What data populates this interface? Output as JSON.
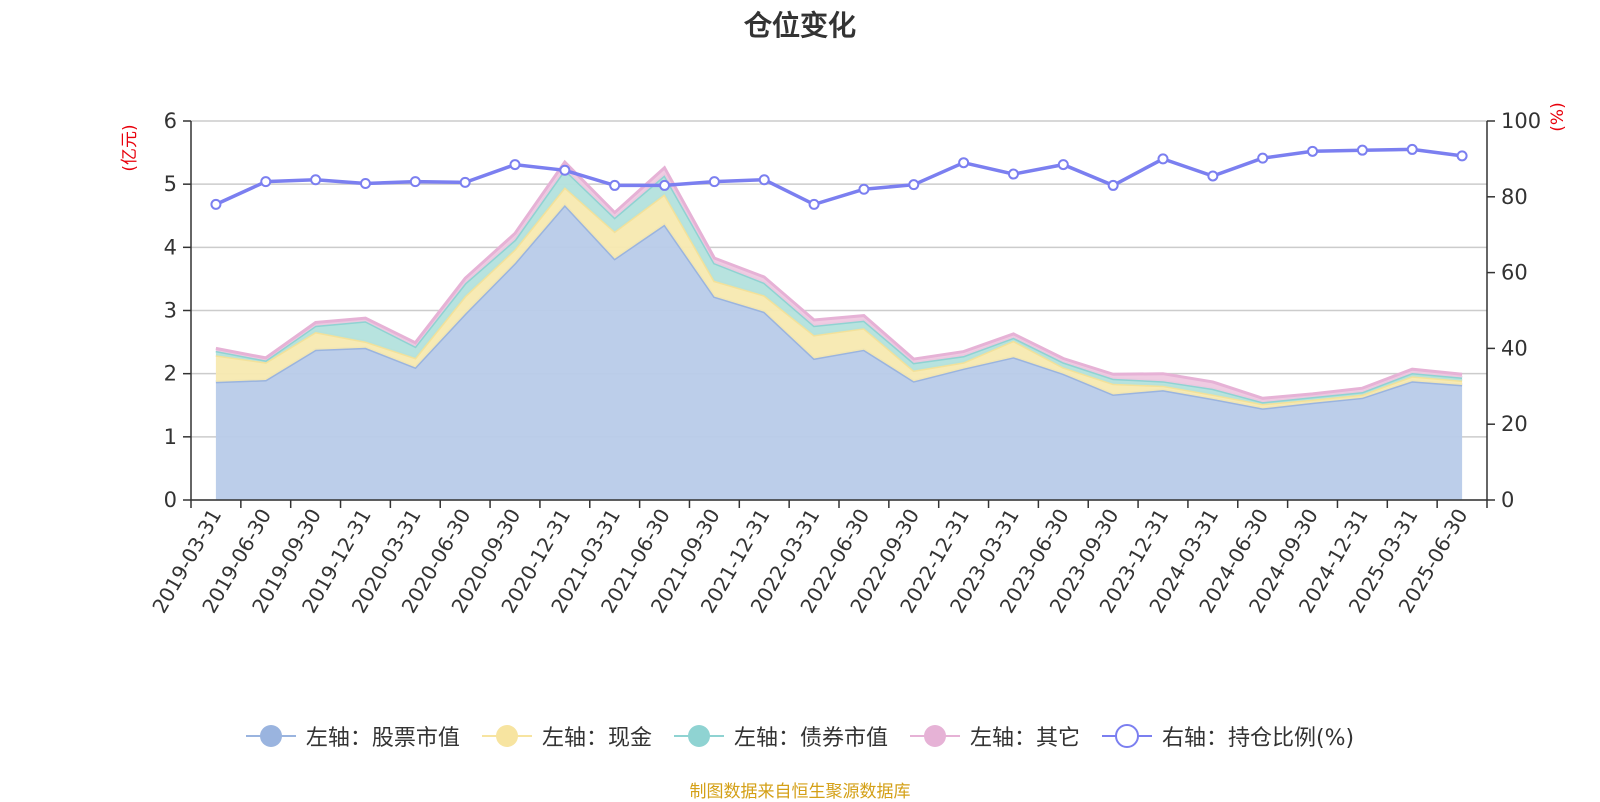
{
  "chart_data": {
    "type": "area",
    "title": "仓位变化",
    "left_axis_unit": "(亿元)",
    "right_axis_unit": "(%)",
    "ylim_left": [
      0,
      6
    ],
    "yticks_left": [
      "0",
      "1",
      "2",
      "3",
      "4",
      "5",
      "6"
    ],
    "ylim_right": [
      0,
      100
    ],
    "yticks_right": [
      "0",
      "20",
      "40",
      "60",
      "80",
      "100"
    ],
    "grid": true,
    "stacked": true,
    "legend_position": "bottom",
    "categories": [
      "2019-03-31",
      "2019-06-30",
      "2019-09-30",
      "2019-12-31",
      "2020-03-31",
      "2020-06-30",
      "2020-09-30",
      "2020-12-31",
      "2021-03-31",
      "2021-06-30",
      "2021-09-30",
      "2021-12-31",
      "2022-03-31",
      "2022-06-30",
      "2022-09-30",
      "2022-12-31",
      "2023-03-31",
      "2023-06-30",
      "2023-09-30",
      "2023-12-31",
      "2024-03-31",
      "2024-06-30",
      "2024-09-30",
      "2024-12-31",
      "2025-03-31",
      "2025-06-30"
    ],
    "series": [
      {
        "name": "左轴：股票市值",
        "axis": "left",
        "type": "area",
        "color": "#9ab4df",
        "fill": "#b8cbe9",
        "values": [
          1.87,
          1.9,
          2.38,
          2.41,
          2.1,
          2.95,
          3.75,
          4.67,
          3.82,
          4.36,
          3.22,
          2.98,
          2.24,
          2.38,
          1.88,
          2.08,
          2.26,
          2.0,
          1.67,
          1.74,
          1.6,
          1.45,
          1.54,
          1.62,
          1.88,
          1.82
        ]
      },
      {
        "name": "左轴：现金",
        "axis": "left",
        "type": "area",
        "color": "#f3e19a",
        "fill": "#f7e9b0",
        "values": [
          0.42,
          0.28,
          0.28,
          0.1,
          0.15,
          0.28,
          0.22,
          0.28,
          0.43,
          0.48,
          0.25,
          0.26,
          0.37,
          0.34,
          0.17,
          0.1,
          0.26,
          0.1,
          0.17,
          0.07,
          0.07,
          0.07,
          0.05,
          0.05,
          0.08,
          0.07
        ]
      },
      {
        "name": "左轴：债券市值",
        "axis": "left",
        "type": "area",
        "color": "#8fd3d2",
        "fill": "#b3e1dd",
        "values": [
          0.07,
          0.03,
          0.1,
          0.32,
          0.18,
          0.2,
          0.15,
          0.28,
          0.22,
          0.3,
          0.28,
          0.2,
          0.15,
          0.12,
          0.12,
          0.1,
          0.05,
          0.08,
          0.08,
          0.07,
          0.09,
          0.03,
          0.04,
          0.04,
          0.05,
          0.05
        ]
      },
      {
        "name": "左轴：其它",
        "axis": "left",
        "type": "area",
        "color": "#e6b2d6",
        "fill": "#efc8e0",
        "values": [
          0.04,
          0.04,
          0.05,
          0.05,
          0.06,
          0.08,
          0.1,
          0.12,
          0.08,
          0.12,
          0.08,
          0.09,
          0.09,
          0.08,
          0.06,
          0.07,
          0.06,
          0.06,
          0.07,
          0.12,
          0.11,
          0.06,
          0.05,
          0.06,
          0.06,
          0.05
        ]
      },
      {
        "name": "右轴：持仓比例(%)",
        "axis": "right",
        "type": "line",
        "color": "#7b7ff0",
        "values": [
          78.0,
          84.0,
          84.5,
          83.5,
          84.0,
          83.8,
          88.5,
          87.0,
          83.0,
          83.0,
          84.0,
          84.5,
          78.0,
          82.0,
          83.2,
          89.0,
          86.0,
          88.5,
          83.0,
          90.0,
          85.5,
          90.2,
          92.0,
          92.3,
          92.5,
          90.8
        ]
      }
    ]
  },
  "legend": [
    {
      "label": "左轴：股票市值",
      "icon": "filled-circle",
      "color": "#9ab4df"
    },
    {
      "label": "左轴：现金",
      "icon": "filled-circle",
      "color": "#f7e4a0"
    },
    {
      "label": "左轴：债券市值",
      "icon": "filled-circle",
      "color": "#8fd3d2"
    },
    {
      "label": "左轴：其它",
      "icon": "filled-circle",
      "color": "#e6b2d6"
    },
    {
      "label": "右轴：持仓比例(%)",
      "icon": "hollow-circle",
      "color": "#7b7ff0"
    }
  ],
  "footer": {
    "source_note": "制图数据来自恒生聚源数据库"
  }
}
